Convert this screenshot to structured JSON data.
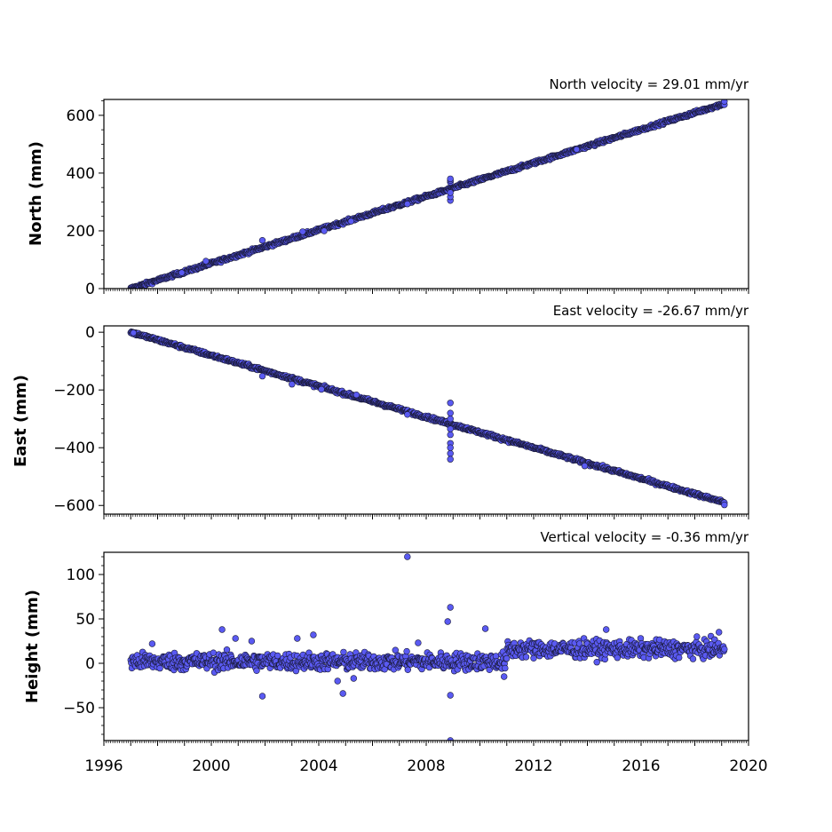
{
  "chart_data": [
    {
      "type": "scatter",
      "annotation": "North velocity = 29.01 mm/yr",
      "ylabel": "North (mm)",
      "xlabel": "",
      "xlim": [
        1996,
        2020
      ],
      "ylim": [
        0,
        655
      ],
      "yticks": [
        0,
        200,
        400,
        600
      ],
      "ytick_labels": [
        "0",
        "200",
        "400",
        "600"
      ],
      "yminor_step": 50,
      "grid": false,
      "velocity_mm_per_yr": 29.01,
      "series": [
        {
          "start": 1997.0,
          "end": 2019.1,
          "intercept": 0,
          "slope": 29.01,
          "scatter": 4,
          "outliers": [
            [
              1998.9,
              55
            ],
            [
              1999.8,
              95
            ],
            [
              2001.9,
              167
            ],
            [
              2003.4,
              197
            ],
            [
              2004.2,
              200
            ],
            [
              2005.2,
              233
            ],
            [
              2007.3,
              293
            ],
            [
              2008.9,
              305
            ],
            [
              2008.9,
              318
            ],
            [
              2008.9,
              332
            ],
            [
              2008.9,
              368
            ],
            [
              2008.9,
              375
            ],
            [
              2008.9,
              380
            ],
            [
              2013.6,
              482
            ],
            [
              2019.1,
              648
            ]
          ]
        }
      ]
    },
    {
      "type": "scatter",
      "annotation": "East velocity = -26.67 mm/yr",
      "ylabel": "East (mm)",
      "xlabel": "",
      "xlim": [
        1996,
        2020
      ],
      "ylim": [
        -630,
        22
      ],
      "yticks": [
        -600,
        -400,
        -200,
        0
      ],
      "ytick_labels": [
        "−600",
        "−400",
        "−200",
        "0"
      ],
      "yminor_step": 50,
      "grid": false,
      "velocity_mm_per_yr": -26.67,
      "series": [
        {
          "start": 1997.0,
          "end": 2019.1,
          "intercept": 0,
          "slope": -26.67,
          "scatter": 4,
          "outliers": [
            [
              1997.1,
              -2
            ],
            [
              2001.9,
              -152
            ],
            [
              2003.0,
              -180
            ],
            [
              2004.1,
              -198
            ],
            [
              2005.4,
              -217
            ],
            [
              2007.3,
              -285
            ],
            [
              2008.9,
              -245
            ],
            [
              2008.9,
              -280
            ],
            [
              2008.9,
              -300
            ],
            [
              2008.9,
              -335
            ],
            [
              2008.9,
              -355
            ],
            [
              2008.9,
              -385
            ],
            [
              2008.9,
              -400
            ],
            [
              2008.9,
              -420
            ],
            [
              2008.9,
              -440
            ],
            [
              2013.9,
              -463
            ],
            [
              2019.1,
              -598
            ]
          ]
        }
      ]
    },
    {
      "type": "scatter",
      "annotation": "Vertical velocity = -0.36 mm/yr",
      "ylabel": "Height (mm)",
      "xlabel": "",
      "xlim": [
        1996,
        2020
      ],
      "ylim": [
        -87,
        125
      ],
      "yticks": [
        -50,
        0,
        50,
        100
      ],
      "ytick_labels": [
        "−50",
        "0",
        "50",
        "100"
      ],
      "xticks": [
        1996,
        2000,
        2004,
        2008,
        2012,
        2016,
        2020
      ],
      "xtick_labels": [
        "1996",
        "2000",
        "2004",
        "2008",
        "2012",
        "2016",
        "2020"
      ],
      "yminor_step": 10,
      "grid": false,
      "velocity_mm_per_yr": -0.36,
      "series": [
        {
          "start": 1997.0,
          "end": 2019.1,
          "segments": [
            {
              "from": 1997.0,
              "to": 2011.0,
              "level": 2
            },
            {
              "from": 2011.0,
              "to": 2019.1,
              "level": 16
            }
          ],
          "scatter": 7,
          "outliers": [
            [
              1997.8,
              22
            ],
            [
              2000.4,
              38
            ],
            [
              2000.9,
              28
            ],
            [
              2001.5,
              25
            ],
            [
              2001.9,
              -37
            ],
            [
              2003.2,
              28
            ],
            [
              2003.8,
              32
            ],
            [
              2004.7,
              -20
            ],
            [
              2004.9,
              -34
            ],
            [
              2005.3,
              -17
            ],
            [
              2007.3,
              120
            ],
            [
              2007.7,
              23
            ],
            [
              2008.8,
              47
            ],
            [
              2008.9,
              63
            ],
            [
              2008.9,
              -36
            ],
            [
              2008.9,
              -87
            ],
            [
              2010.2,
              39
            ],
            [
              2010.9,
              -15
            ],
            [
              2014.7,
              38
            ],
            [
              2018.9,
              35
            ]
          ]
        }
      ]
    }
  ],
  "style": {
    "marker_fill": "#5a5af2",
    "marker_edge": "#1a1a3a",
    "axes_color": "#000000"
  }
}
